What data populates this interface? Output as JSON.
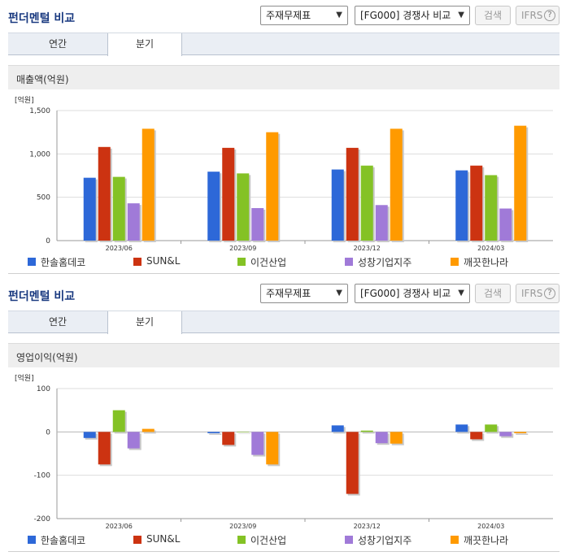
{
  "panels": [
    {
      "title": "펀더멘털 비교",
      "select1": "주재무제표",
      "select2": "[FG000] 경쟁사 비교",
      "search_label": "검색",
      "ifrs_label": "IFRS",
      "help_label": "?",
      "tabs": [
        {
          "label": "연간"
        },
        {
          "label": "분기"
        }
      ],
      "metric_label": "매출액(억원)"
    },
    {
      "title": "펀더멘털 비교",
      "select1": "주재무제표",
      "select2": "[FG000] 경쟁사 비교",
      "search_label": "검색",
      "ifrs_label": "IFRS",
      "help_label": "?",
      "tabs": [
        {
          "label": "연간"
        },
        {
          "label": "분기"
        }
      ],
      "metric_label": "영업이익(억원)"
    }
  ],
  "colors": {
    "한솔홈데코": "#2d68d8",
    "SUN&L": "#cc3311",
    "이건산업": "#84c225",
    "성창기업지주": "#a07ad8",
    "깨끗한나라": "#ff9a00"
  },
  "chart_data": [
    {
      "type": "bar",
      "ylabel": "[억원]",
      "categories": [
        "2023/06",
        "2023/09",
        "2023/12",
        "2024/03"
      ],
      "ylim": [
        0,
        1500
      ],
      "yticks": [
        0,
        500,
        1000,
        1500
      ],
      "ytick_labels": [
        "0",
        "500",
        "1,000",
        "1,500"
      ],
      "grid": true,
      "legend_position": "bottom",
      "series": [
        {
          "name": "한솔홈데코",
          "values": [
            725,
            795,
            820,
            810
          ]
        },
        {
          "name": "SUN&L",
          "values": [
            1080,
            1070,
            1070,
            865
          ]
        },
        {
          "name": "이건산업",
          "values": [
            735,
            775,
            865,
            755
          ]
        },
        {
          "name": "성창기업지주",
          "values": [
            430,
            375,
            410,
            370
          ]
        },
        {
          "name": "깨끗한나라",
          "values": [
            1290,
            1250,
            1290,
            1325
          ]
        }
      ]
    },
    {
      "type": "bar",
      "ylabel": "[억원]",
      "categories": [
        "2023/06",
        "2023/09",
        "2023/12",
        "2024/03"
      ],
      "ylim": [
        -200,
        100
      ],
      "yticks": [
        -200,
        -100,
        0,
        100
      ],
      "ytick_labels": [
        "-200",
        "-100",
        "0",
        "100"
      ],
      "grid": true,
      "legend_position": "bottom",
      "series": [
        {
          "name": "한솔홈데코",
          "values": [
            -14,
            -3,
            15,
            17
          ]
        },
        {
          "name": "SUN&L",
          "values": [
            -75,
            -30,
            -143,
            -17
          ]
        },
        {
          "name": "이건산업",
          "values": [
            50,
            -1,
            3,
            17
          ]
        },
        {
          "name": "성창기업지주",
          "values": [
            -38,
            -53,
            -26,
            -10
          ]
        },
        {
          "name": "깨끗한나라",
          "values": [
            7,
            -75,
            -27,
            -3
          ]
        }
      ]
    }
  ]
}
